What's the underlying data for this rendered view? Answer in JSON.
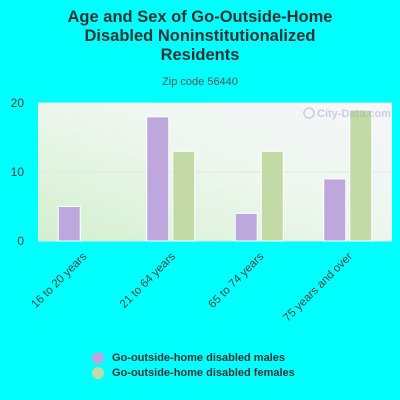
{
  "chart_data": {
    "type": "bar",
    "title": "Age and Sex of Go-Outside-Home\nDisabled Noninstitutionalized\nResidents",
    "subtitle": "Zip code 56440",
    "watermark": "City-Data.com",
    "categories": [
      "16 to 20 years",
      "21 to 64 years",
      "65 to 74 years",
      "75 years and over"
    ],
    "series": [
      {
        "name": "Go-outside-home disabled males",
        "color": "#bda7dc",
        "values": [
          5,
          18,
          4,
          9
        ]
      },
      {
        "name": "Go-outside-home disabled females",
        "color": "#c3d9a6",
        "values": [
          0,
          13,
          13,
          19
        ]
      }
    ],
    "ylim": [
      0,
      20
    ],
    "yticks": [
      0,
      10,
      20
    ],
    "grid": true,
    "legend_position": "bottom"
  }
}
